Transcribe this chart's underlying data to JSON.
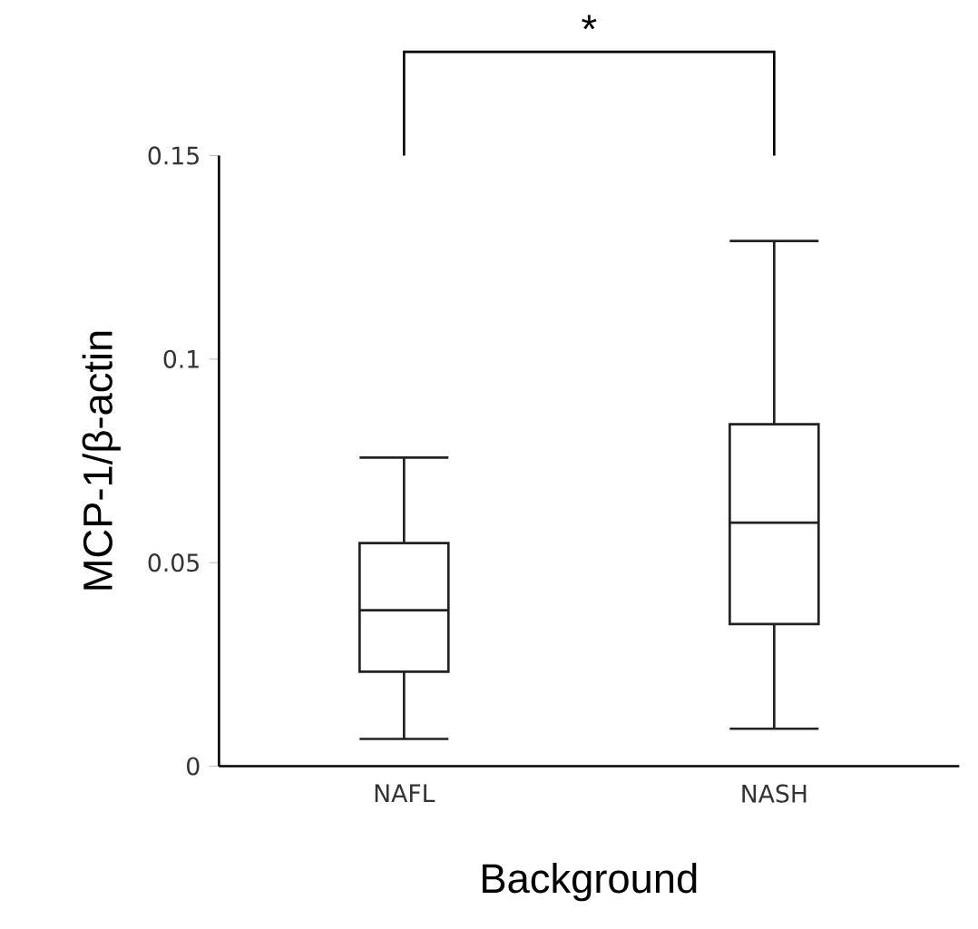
{
  "chart_data": {
    "type": "box",
    "xlabel": "Background",
    "ylabel": "MCP-1/β-actin",
    "categories": [
      "NAFL",
      "NASH"
    ],
    "boxes": [
      {
        "low": 0.0067,
        "q1": 0.0232,
        "median": 0.0383,
        "q3": 0.0548,
        "high": 0.0758
      },
      {
        "low": 0.0092,
        "q1": 0.0349,
        "median": 0.0598,
        "q3": 0.084,
        "high": 0.129
      }
    ],
    "color": "#222222",
    "ylim": [
      0,
      0.15
    ],
    "yticks": [
      0,
      0.05,
      0.1,
      0.15
    ],
    "annotations": [
      "*"
    ]
  }
}
